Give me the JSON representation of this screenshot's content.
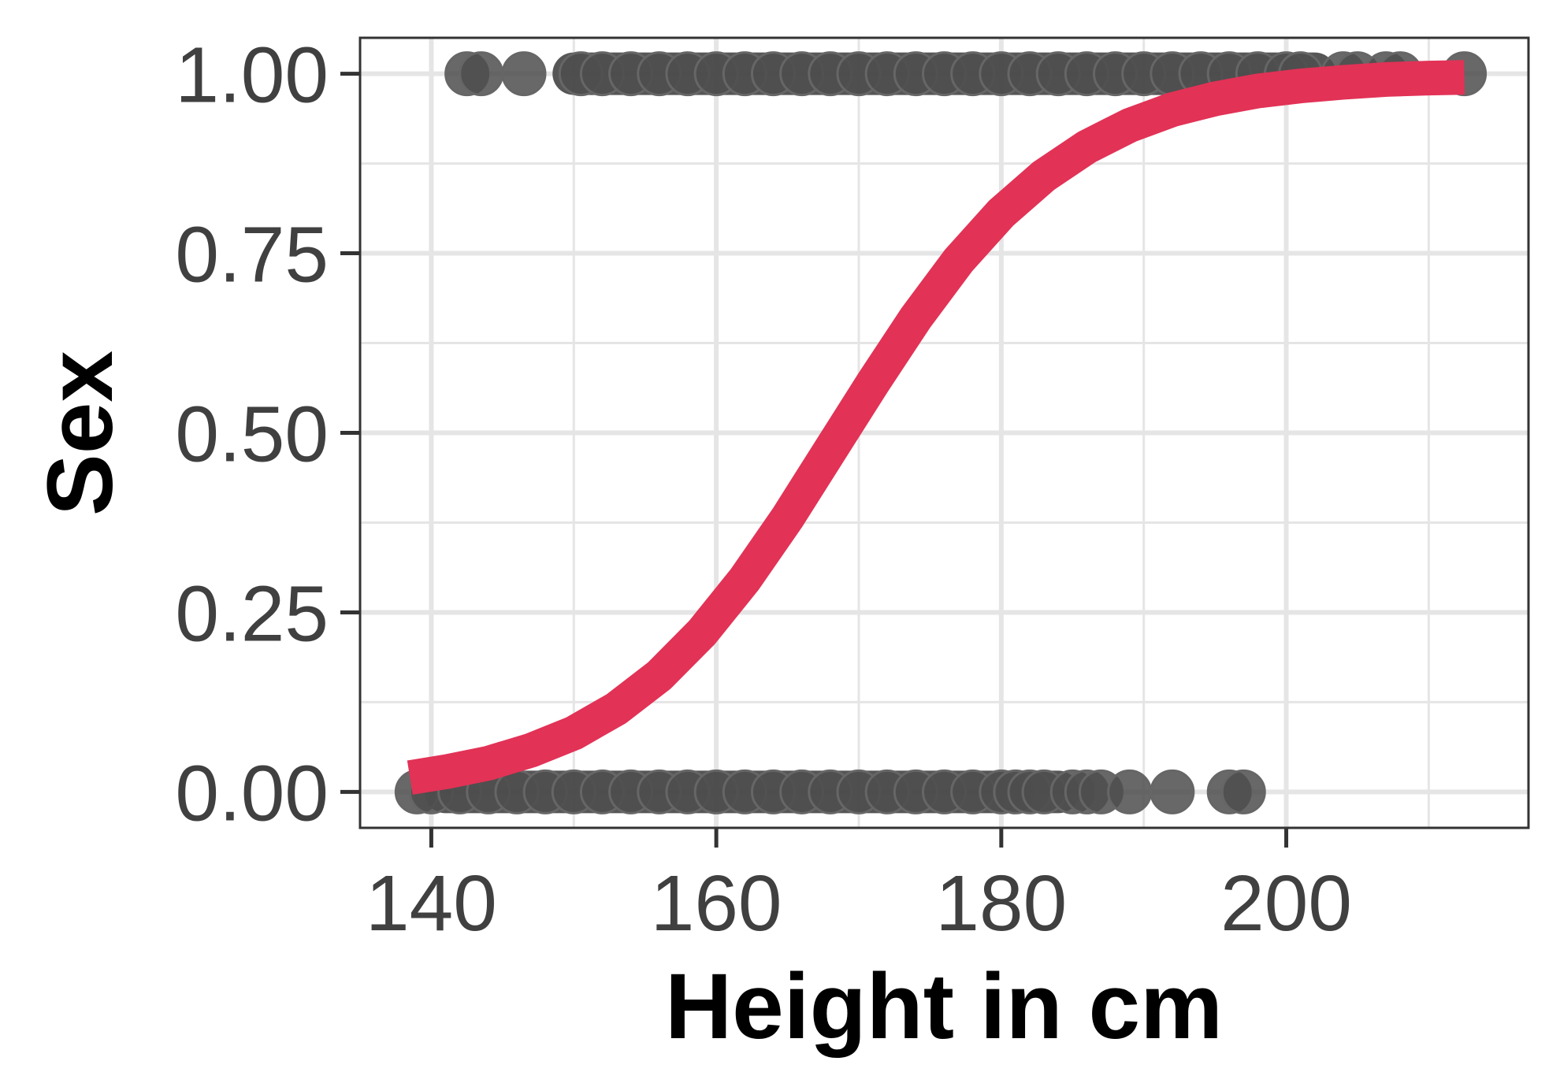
{
  "chart_data": {
    "type": "scatter",
    "title": "",
    "xlabel": "Height in cm",
    "ylabel": "Sex",
    "xlim": [
      135,
      217
    ],
    "ylim": [
      -0.05,
      1.05
    ],
    "x_ticks": [
      140,
      160,
      180,
      200
    ],
    "x_tick_labels": [
      "140",
      "160",
      "180",
      "200"
    ],
    "y_ticks": [
      0,
      0.25,
      0.5,
      0.75,
      1
    ],
    "y_tick_labels": [
      "0.00",
      "0.25",
      "0.50",
      "0.75",
      "1.00"
    ],
    "grid": true,
    "colors": {
      "points": "#4d4d4d",
      "curve": "#e23256",
      "grid": "#e5e5e5",
      "panel_border": "#333333",
      "tick_text": "#404040"
    },
    "series": [
      {
        "type": "scatter",
        "points": [
          {
            "x": 139,
            "y": 0
          },
          {
            "x": 140,
            "y": 0
          },
          {
            "x": 142,
            "y": 0
          },
          {
            "x": 144,
            "y": 0
          },
          {
            "x": 146,
            "y": 0
          },
          {
            "x": 148,
            "y": 0
          },
          {
            "x": 150,
            "y": 0
          },
          {
            "x": 152,
            "y": 0
          },
          {
            "x": 154,
            "y": 0
          },
          {
            "x": 156,
            "y": 0
          },
          {
            "x": 158,
            "y": 0
          },
          {
            "x": 160,
            "y": 0
          },
          {
            "x": 162,
            "y": 0
          },
          {
            "x": 164,
            "y": 0
          },
          {
            "x": 166,
            "y": 0
          },
          {
            "x": 168,
            "y": 0
          },
          {
            "x": 170,
            "y": 0
          },
          {
            "x": 172,
            "y": 0
          },
          {
            "x": 174,
            "y": 0
          },
          {
            "x": 176,
            "y": 0
          },
          {
            "x": 178,
            "y": 0
          },
          {
            "x": 180,
            "y": 0
          },
          {
            "x": 181,
            "y": 0
          },
          {
            "x": 182,
            "y": 0
          },
          {
            "x": 183,
            "y": 0
          },
          {
            "x": 185,
            "y": 0
          },
          {
            "x": 186,
            "y": 0
          },
          {
            "x": 187,
            "y": 0
          },
          {
            "x": 189,
            "y": 0
          },
          {
            "x": 192,
            "y": 0
          },
          {
            "x": 196,
            "y": 0
          },
          {
            "x": 197,
            "y": 0
          },
          {
            "x": 142.5,
            "y": 1
          },
          {
            "x": 143.5,
            "y": 1
          },
          {
            "x": 146.5,
            "y": 1
          },
          {
            "x": 150.5,
            "y": 1
          },
          {
            "x": 152,
            "y": 1
          },
          {
            "x": 154,
            "y": 1
          },
          {
            "x": 156,
            "y": 1
          },
          {
            "x": 158,
            "y": 1
          },
          {
            "x": 160,
            "y": 1
          },
          {
            "x": 162,
            "y": 1
          },
          {
            "x": 164,
            "y": 1
          },
          {
            "x": 166,
            "y": 1
          },
          {
            "x": 168,
            "y": 1
          },
          {
            "x": 170,
            "y": 1
          },
          {
            "x": 172,
            "y": 1
          },
          {
            "x": 174,
            "y": 1
          },
          {
            "x": 176,
            "y": 1
          },
          {
            "x": 178,
            "y": 1
          },
          {
            "x": 180,
            "y": 1
          },
          {
            "x": 182,
            "y": 1
          },
          {
            "x": 184,
            "y": 1
          },
          {
            "x": 186,
            "y": 1
          },
          {
            "x": 188,
            "y": 1
          },
          {
            "x": 190,
            "y": 1
          },
          {
            "x": 192,
            "y": 1
          },
          {
            "x": 194,
            "y": 1
          },
          {
            "x": 196,
            "y": 1
          },
          {
            "x": 198,
            "y": 1
          },
          {
            "x": 200,
            "y": 1
          },
          {
            "x": 201,
            "y": 1
          },
          {
            "x": 204,
            "y": 1
          },
          {
            "x": 205,
            "y": 1
          },
          {
            "x": 207,
            "y": 1
          },
          {
            "x": 208,
            "y": 1
          },
          {
            "x": 212.5,
            "y": 1
          }
        ]
      },
      {
        "type": "line",
        "points": [
          {
            "x": 138.5,
            "y": 0.02
          },
          {
            "x": 141,
            "y": 0.028
          },
          {
            "x": 144,
            "y": 0.04
          },
          {
            "x": 147,
            "y": 0.058
          },
          {
            "x": 150,
            "y": 0.082
          },
          {
            "x": 153,
            "y": 0.116
          },
          {
            "x": 156,
            "y": 0.162
          },
          {
            "x": 159,
            "y": 0.222
          },
          {
            "x": 162,
            "y": 0.296
          },
          {
            "x": 165,
            "y": 0.382
          },
          {
            "x": 168,
            "y": 0.476
          },
          {
            "x": 171,
            "y": 0.57
          },
          {
            "x": 174,
            "y": 0.66
          },
          {
            "x": 177,
            "y": 0.74
          },
          {
            "x": 180,
            "y": 0.806
          },
          {
            "x": 183,
            "y": 0.858
          },
          {
            "x": 186,
            "y": 0.898
          },
          {
            "x": 189,
            "y": 0.928
          },
          {
            "x": 192,
            "y": 0.95
          },
          {
            "x": 195,
            "y": 0.965
          },
          {
            "x": 198,
            "y": 0.976
          },
          {
            "x": 201,
            "y": 0.983
          },
          {
            "x": 204,
            "y": 0.988
          },
          {
            "x": 207,
            "y": 0.992
          },
          {
            "x": 210,
            "y": 0.994
          },
          {
            "x": 212.5,
            "y": 0.995
          }
        ]
      }
    ]
  }
}
